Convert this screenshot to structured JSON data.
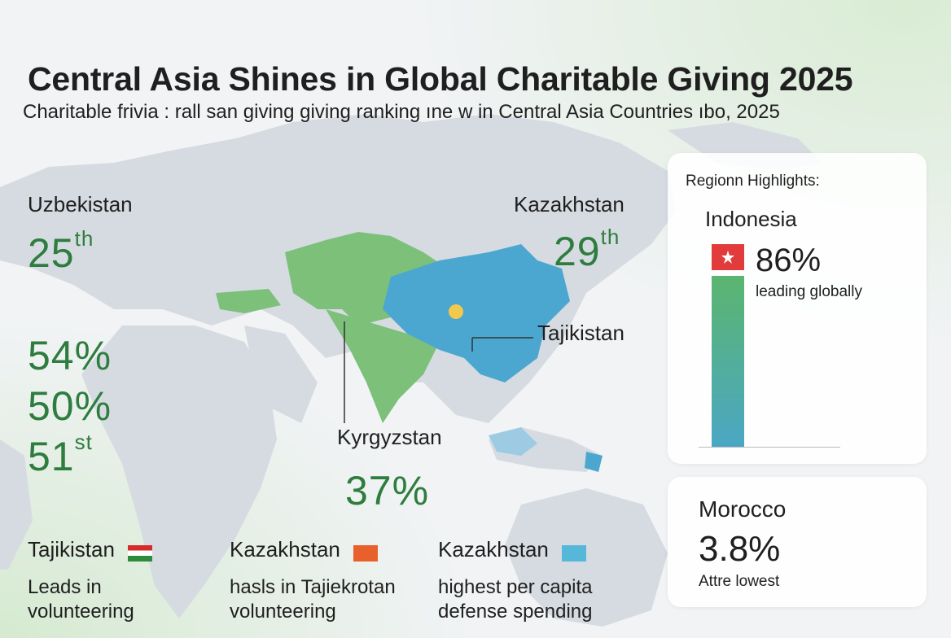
{
  "header": {
    "title": "Central Asia Shines in Global Charitable Giving 2025",
    "subtitle": "Charitable frivia : rall san giving giving ranking ıne w in Central Asia Countries ıbo, 2025"
  },
  "left_panel": {
    "country": "Uzbekistan",
    "rank_num": "25",
    "rank_suffix": "th",
    "stat1": "54%",
    "stat2": "50%",
    "rank2_num": "51",
    "rank2_suffix": "st"
  },
  "map_labels": {
    "kazakhstan": "Kazakhstan",
    "kazakhstan_rank_num": "29",
    "kazakhstan_rank_suffix": "th",
    "tajikistan": "Tajikistan",
    "kyrgyzstan": "Kyrgyzstan",
    "kyrgyzstan_value": "37%"
  },
  "highlights": {
    "heading": "Regionn Highlights:",
    "country": "Indonesia",
    "value": "86%",
    "caption": "leading globally",
    "bar_fraction": 0.86
  },
  "morocco_card": {
    "country": "Morocco",
    "value": "3.8%",
    "caption": "Attre lowest"
  },
  "bottom": [
    {
      "name": "Tajikistan",
      "desc": "Leads in\nvolunteering",
      "flag": "tajikistan-flag"
    },
    {
      "name": "Kazakhstan",
      "desc": "hasls in Tajiekrotan\nvolunteering",
      "flag": "orange-flag"
    },
    {
      "name": "Kazakhstan",
      "desc": "highest per capita\ndefense spending",
      "flag": "kazakhstan-flag"
    }
  ],
  "colors": {
    "accent_green": "#2e7d3f",
    "map_green": "#7cc07a",
    "map_blue": "#4ba7cf",
    "land_gray": "#d6dbe1"
  }
}
